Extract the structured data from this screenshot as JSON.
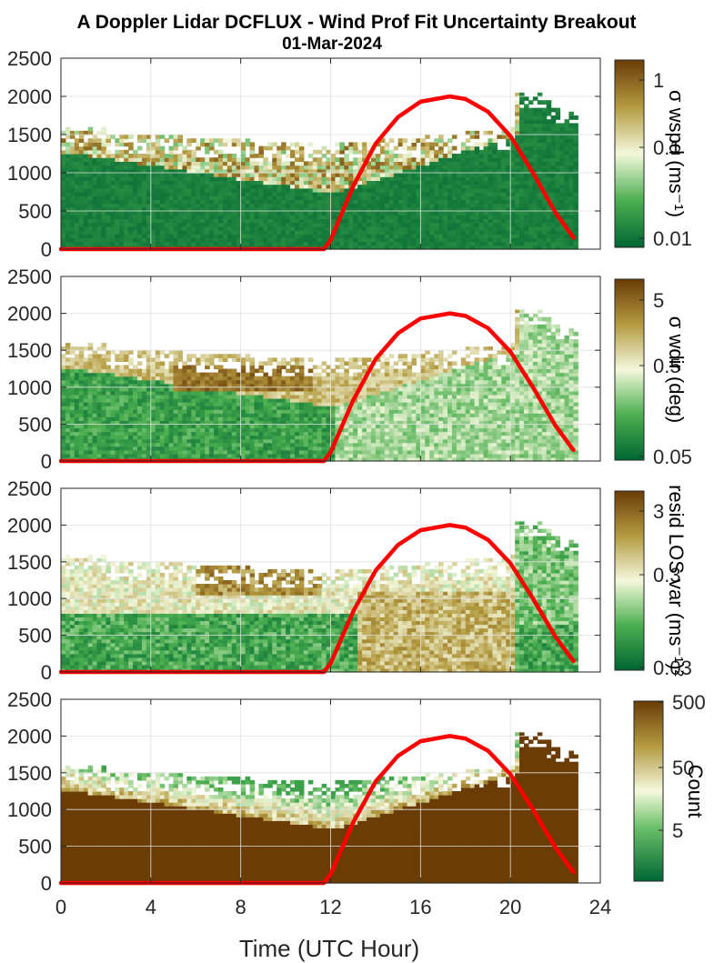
{
  "title": {
    "line1": "A Doppler Lidar DCFLUX - Wind Prof Fit Uncertainty Breakout",
    "line2": "01-Mar-2024"
  },
  "xlabel": "Time (UTC Hour)",
  "xticks": [
    "0",
    "4",
    "8",
    "12",
    "16",
    "20",
    "24"
  ],
  "yticks": [
    "0",
    "500",
    "1000",
    "1500",
    "2000",
    "2500"
  ],
  "colors": {
    "sun_line": "#ff0000",
    "dark_green": "#006633",
    "mid_green": "#5cb85c",
    "pale": "#f2f7dc",
    "tan": "#a08a3a",
    "dark_brown": "#6b3c06",
    "axis": "#262626",
    "grid": "#e0e0e0"
  },
  "chart_data": [
    {
      "type": "heatmap",
      "xlim": [
        0,
        24
      ],
      "ylim": [
        0,
        2500
      ],
      "grid": true,
      "colorbar": {
        "label": "σ wspd (ms⁻¹)",
        "ticks": [
          "1",
          "0.1",
          "0.01"
        ],
        "scale": "log",
        "range": [
          0.01,
          1
        ]
      },
      "sun_elevation_line": {
        "x": [
          0,
          11.7,
          12,
          13,
          14,
          15,
          16,
          17.3,
          18,
          19,
          20,
          21,
          22,
          22.8
        ],
        "y": [
          0,
          0,
          120,
          820,
          1380,
          1730,
          1930,
          2000,
          1965,
          1800,
          1480,
          1000,
          480,
          150
        ]
      }
    },
    {
      "type": "heatmap",
      "xlim": [
        0,
        24
      ],
      "ylim": [
        0,
        2500
      ],
      "grid": true,
      "colorbar": {
        "label": "σ wdir (deg)",
        "ticks": [
          "5",
          "0.5",
          "0.05"
        ],
        "scale": "log",
        "range": [
          0.05,
          5
        ]
      },
      "sun_elevation_line": {
        "x": [
          0,
          11.7,
          12,
          13,
          14,
          15,
          16,
          17.3,
          18,
          19,
          20,
          21,
          22,
          22.8
        ],
        "y": [
          0,
          0,
          120,
          820,
          1380,
          1730,
          1930,
          2000,
          1965,
          1800,
          1480,
          1000,
          480,
          150
        ]
      }
    },
    {
      "type": "heatmap",
      "xlim": [
        0,
        24
      ],
      "ylim": [
        0,
        2500
      ],
      "grid": true,
      "colorbar": {
        "label": "resid LOS var (ms⁻¹)²",
        "ticks": [
          "3",
          "0.3",
          "0.03"
        ],
        "scale": "log",
        "range": [
          0.03,
          3
        ]
      },
      "sun_elevation_line": {
        "x": [
          0,
          11.7,
          12,
          13,
          14,
          15,
          16,
          17.3,
          18,
          19,
          20,
          21,
          22,
          22.8
        ],
        "y": [
          0,
          0,
          120,
          820,
          1380,
          1730,
          1930,
          2000,
          1965,
          1800,
          1480,
          1000,
          480,
          150
        ]
      }
    },
    {
      "type": "heatmap",
      "xlim": [
        0,
        24
      ],
      "ylim": [
        0,
        2500
      ],
      "grid": true,
      "colorbar": {
        "label": "Count",
        "ticks": [
          "500",
          "50",
          "5"
        ],
        "scale": "log",
        "range": [
          2,
          500
        ]
      },
      "sun_elevation_line": {
        "x": [
          0,
          11.7,
          12,
          13,
          14,
          15,
          16,
          17.3,
          18,
          19,
          20,
          21,
          22,
          22.8
        ],
        "y": [
          0,
          0,
          120,
          820,
          1380,
          1730,
          1930,
          2000,
          1965,
          1800,
          1480,
          1000,
          480,
          150
        ]
      }
    }
  ]
}
